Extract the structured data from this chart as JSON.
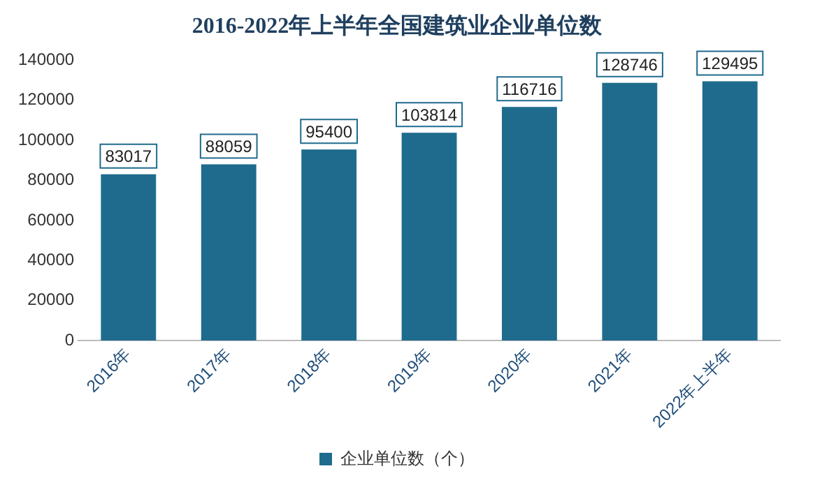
{
  "chart_data": {
    "type": "bar",
    "title": "2016-2022年上半年全国建筑业企业单位数",
    "categories": [
      "2016年",
      "2017年",
      "2018年",
      "2019年",
      "2020年",
      "2021年",
      "2022年上半年"
    ],
    "series": [
      {
        "name": "企业单位数（个）",
        "color": "#1f6b8e",
        "values": [
          83017,
          88059,
          95400,
          103814,
          116716,
          128746,
          129495
        ]
      }
    ],
    "ylim": [
      0,
      140000
    ],
    "yticks": [
      0,
      20000,
      40000,
      60000,
      80000,
      100000,
      120000,
      140000
    ],
    "grid": false,
    "legend": "bottom",
    "data_labels": true
  }
}
